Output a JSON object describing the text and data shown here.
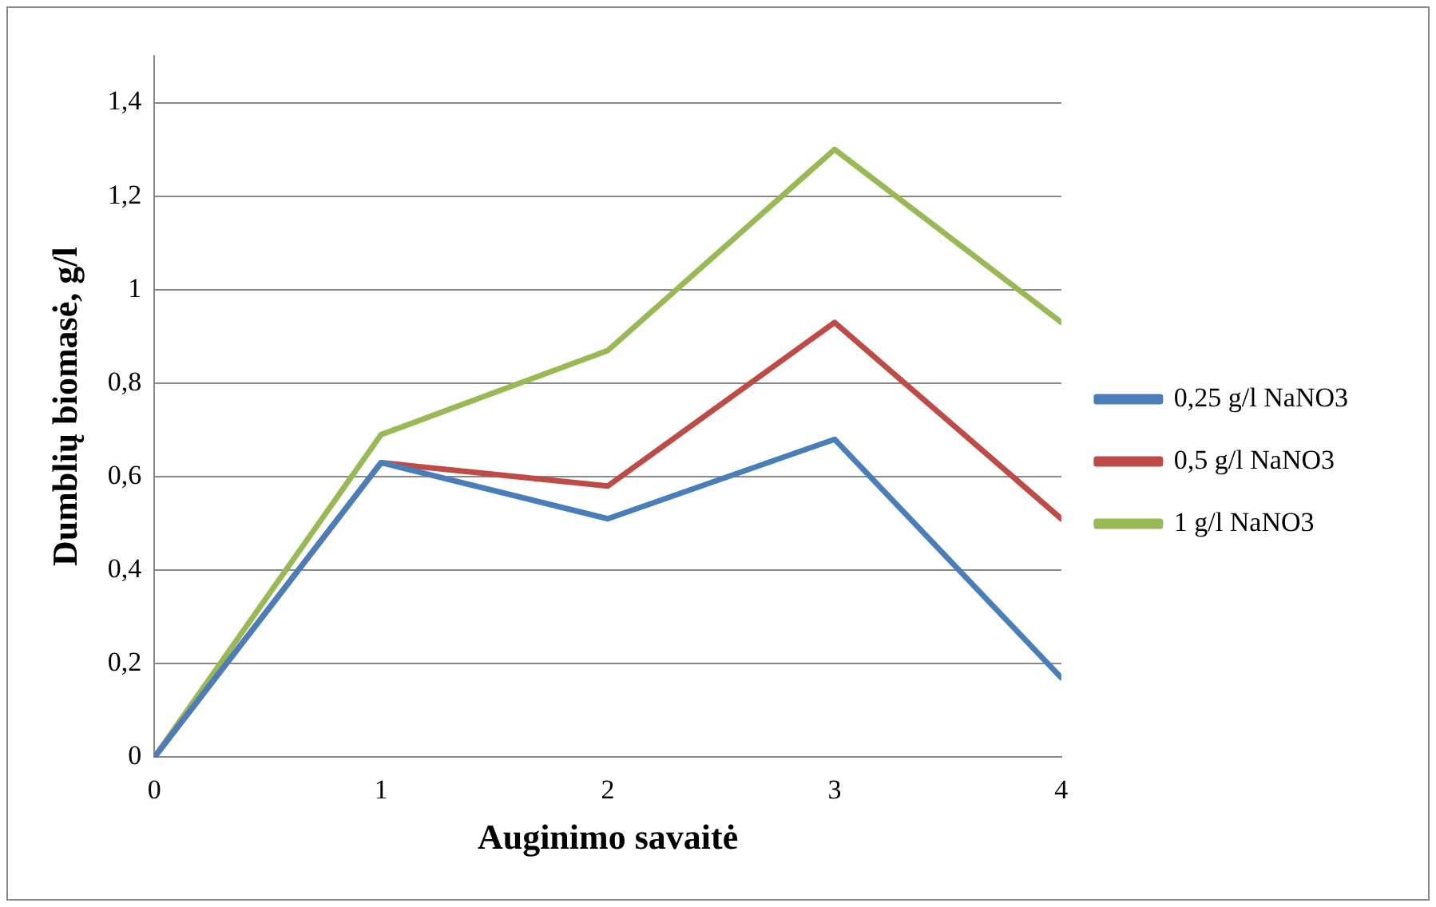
{
  "chart_data": {
    "type": "line",
    "xlabel": "Auginimo savaitė",
    "ylabel": "Dumblių biomasė, g/l",
    "x": [
      0,
      1,
      2,
      3,
      4
    ],
    "xlim": [
      0,
      4
    ],
    "xticks": [
      0,
      1,
      2,
      3,
      4
    ],
    "ylim": [
      0,
      1.5
    ],
    "yticks": [
      0,
      {
        "value": 0.2,
        "label": "0,2"
      },
      {
        "value": 0.4,
        "label": "0,4"
      },
      {
        "value": 0.6,
        "label": "0,6"
      },
      {
        "value": 0.8,
        "label": "0,8"
      },
      1,
      {
        "value": 1.2,
        "label": "1,2"
      },
      {
        "value": 1.4,
        "label": "1,4"
      }
    ],
    "grid": "y",
    "legend": "right",
    "marker": "none",
    "line_style": "solid",
    "series": [
      {
        "name": "0,25 g/l NaNO3",
        "color": "#4a7ebb",
        "values": [
          0,
          0.63,
          0.51,
          0.68,
          0.17
        ]
      },
      {
        "name": "0,5 g/l NaNO3",
        "color": "#be4b48",
        "values": [
          0,
          0.63,
          0.58,
          0.93,
          0.51
        ]
      },
      {
        "name": "1 g/l NaNO3",
        "color": "#98b954",
        "values": [
          0,
          0.69,
          0.87,
          1.3,
          0.93
        ]
      }
    ]
  }
}
